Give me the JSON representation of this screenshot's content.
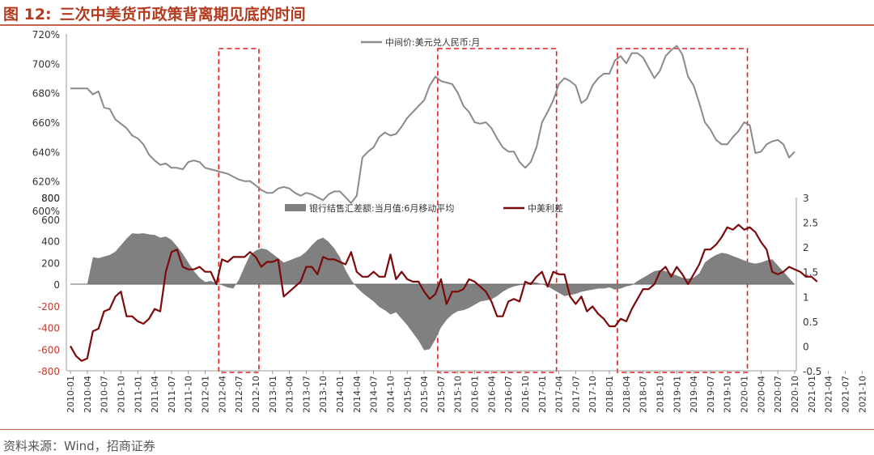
{
  "figure": {
    "title_number": "图 12:",
    "title_text": "三次中美货币政策背离期见底的时间",
    "source": "资料来源：Wind，招商证券"
  },
  "colors": {
    "title": "#b33a1e",
    "rate_line": "#8a8a8a",
    "balance_area": "#808080",
    "spread_line": "#7b0a0a",
    "highlight_box": "#e02020",
    "neg_tick": "#c0392b"
  },
  "chart_data": [
    {
      "type": "line",
      "title": "",
      "series": [
        {
          "name": "中间价:美元兑人民币:月",
          "values": [
            683,
            683,
            683,
            683,
            679,
            681,
            670,
            669,
            662,
            659,
            656,
            651,
            649,
            645,
            638,
            634,
            631,
            632,
            629,
            629,
            628,
            633,
            634,
            633,
            629,
            628,
            627,
            626,
            625,
            623,
            621,
            620,
            620,
            617,
            614,
            612,
            612,
            615,
            616,
            615,
            612,
            610,
            612,
            611,
            609,
            607,
            611,
            613,
            613,
            609,
            605,
            610,
            636,
            640,
            643,
            650,
            653,
            651,
            652,
            657,
            663,
            667,
            671,
            675,
            685,
            691,
            688,
            687,
            686,
            680,
            671,
            667,
            660,
            659,
            660,
            656,
            649,
            643,
            640,
            640,
            633,
            629,
            633,
            643,
            660,
            667,
            675,
            686,
            690,
            688,
            685,
            673,
            676,
            685,
            690,
            693,
            693,
            702,
            705,
            700,
            707,
            707,
            704,
            697,
            690,
            695,
            705,
            709,
            712,
            706,
            691,
            685,
            673,
            660,
            655,
            648,
            645,
            645,
            650,
            654,
            660,
            658,
            639,
            640,
            645,
            647,
            648,
            645,
            636,
            640
          ],
          "description": "USD/CNY central parity, monthly"
        }
      ],
      "x_start": "2010-01",
      "x_step": "month",
      "ylim": [
        600,
        720
      ],
      "yticks": [
        "600%",
        "620%",
        "640%",
        "660%",
        "680%",
        "700%",
        "720%"
      ],
      "legend": "top-center"
    },
    {
      "type": "area",
      "series": [
        {
          "name": "银行结售汇差额:当月值:6月移动平均",
          "axis": "left",
          "values": [
            0,
            0,
            0,
            0,
            250,
            240,
            255,
            270,
            300,
            360,
            420,
            470,
            465,
            470,
            460,
            455,
            430,
            440,
            410,
            350,
            280,
            200,
            120,
            60,
            20,
            30,
            10,
            -10,
            -30,
            -40,
            40,
            160,
            270,
            310,
            330,
            320,
            280,
            240,
            200,
            220,
            240,
            260,
            300,
            360,
            410,
            430,
            390,
            330,
            250,
            130,
            40,
            -30,
            -80,
            -120,
            -160,
            -210,
            -240,
            -280,
            -260,
            -320,
            -380,
            -450,
            -520,
            -610,
            -600,
            -510,
            -400,
            -330,
            -280,
            -250,
            -240,
            -220,
            -190,
            -160,
            -150,
            -140,
            -110,
            -70,
            -40,
            -20,
            -10,
            -5,
            20,
            15,
            0,
            -20,
            -50,
            -80,
            -110,
            -100,
            -90,
            -70,
            -60,
            -50,
            -40,
            -40,
            -30,
            -50,
            -40,
            -20,
            -10,
            30,
            60,
            90,
            120,
            130,
            120,
            100,
            80,
            60,
            50,
            60,
            100,
            200,
            240,
            270,
            290,
            280,
            260,
            240,
            220,
            200,
            190,
            200,
            220,
            230
          ],
          "ylim": [
            -800,
            800
          ],
          "yticks": [
            "-800",
            "-600",
            "-400",
            "-200",
            "0",
            "200",
            "400",
            "600",
            "800"
          ]
        },
        {
          "name": "中美利差",
          "axis": "right",
          "type": "line",
          "values": [
            0,
            -0.2,
            -0.3,
            -0.25,
            0.3,
            0.35,
            0.7,
            0.75,
            1.0,
            1.1,
            0.6,
            0.6,
            0.5,
            0.45,
            0.55,
            0.75,
            0.7,
            1.5,
            1.9,
            1.95,
            1.6,
            1.55,
            1.55,
            1.6,
            1.5,
            1.5,
            1.25,
            1.75,
            1.7,
            1.8,
            1.8,
            1.8,
            1.9,
            1.8,
            1.6,
            1.7,
            1.7,
            1.75,
            1.0,
            1.1,
            1.2,
            1.3,
            1.6,
            1.6,
            1.45,
            1.8,
            1.75,
            1.75,
            1.7,
            1.65,
            1.9,
            1.5,
            1.4,
            1.4,
            1.5,
            1.4,
            1.4,
            1.85,
            1.35,
            1.5,
            1.35,
            1.3,
            1.3,
            1.1,
            0.95,
            1.05,
            1.35,
            0.85,
            1.1,
            1.1,
            1.15,
            1.35,
            1.3,
            1.2,
            1.1,
            0.9,
            0.6,
            0.6,
            0.9,
            0.95,
            0.9,
            1.3,
            1.25,
            1.4,
            1.5,
            1.2,
            1.5,
            1.45,
            1.45,
            1.0,
            0.85,
            1.0,
            0.7,
            0.8,
            0.65,
            0.55,
            0.4,
            0.4,
            0.55,
            0.5,
            0.75,
            0.95,
            1.15,
            1.15,
            1.25,
            1.5,
            1.6,
            1.4,
            1.6,
            1.45,
            1.25,
            1.45,
            1.65,
            1.95,
            1.95,
            2.05,
            2.2,
            2.4,
            2.35,
            2.45,
            2.35,
            2.4,
            2.3,
            2.1,
            1.95,
            1.5,
            1.45,
            1.5,
            1.6,
            1.55,
            1.5,
            1.4,
            1.4,
            1.3
          ],
          "ylim": [
            -0.5,
            3
          ],
          "yticks": [
            "-0.5",
            "0",
            "0.5",
            "1",
            "1.5",
            "2",
            "2.5",
            "3"
          ]
        }
      ],
      "x_start": "2010-01",
      "x_step": "month",
      "xticks": [
        "2010-01",
        "2010-04",
        "2010-07",
        "2010-10",
        "2011-01",
        "2011-04",
        "2011-07",
        "2011-10",
        "2012-01",
        "2012-04",
        "2012-07",
        "2012-10",
        "2013-01",
        "2013-04",
        "2013-07",
        "2013-10",
        "2014-01",
        "2014-04",
        "2014-07",
        "2014-10",
        "2015-01",
        "2015-04",
        "2015-07",
        "2015-10",
        "2016-01",
        "2016-04",
        "2016-07",
        "2016-10",
        "2017-01",
        "2017-04",
        "2017-07",
        "2017-10",
        "2018-01",
        "2018-04",
        "2018-07",
        "2018-10",
        "2019-01",
        "2019-04",
        "2019-07",
        "2019-10",
        "2020-01",
        "2020-04",
        "2020-07",
        "2020-10",
        "2021-01",
        "2021-04",
        "2021-07",
        "2021-10"
      ],
      "legend": "top-center",
      "top_axis_label": "800"
    }
  ],
  "highlights": [
    {
      "start": "2012-04",
      "end": "2012-10"
    },
    {
      "start": "2015-07",
      "end": "2017-03"
    },
    {
      "start": "2018-03",
      "end": "2020-01"
    }
  ]
}
